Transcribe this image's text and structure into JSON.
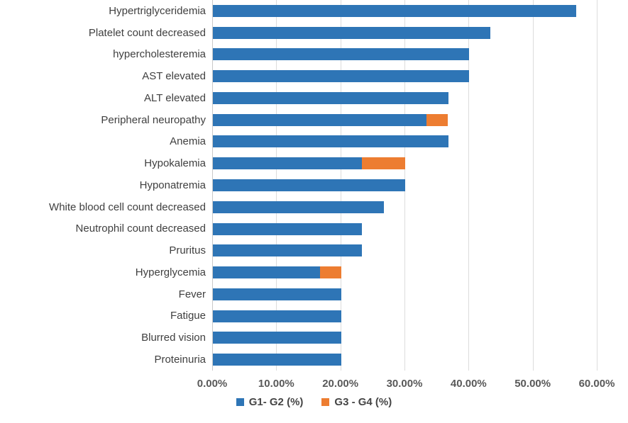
{
  "chart_data": {
    "type": "bar",
    "orientation": "horizontal",
    "stacked": true,
    "title": "",
    "xlabel": "",
    "ylabel": "",
    "grid": "vertical",
    "legend_position": "bottom",
    "xlim": [
      0,
      60
    ],
    "x_tick_labels": [
      "0.00%",
      "10.00%",
      "20.00%",
      "30.00%",
      "40.00%",
      "50.00%",
      "60.00%"
    ],
    "x_tick_values": [
      0,
      10,
      20,
      30,
      40,
      50,
      60
    ],
    "categories": [
      "Hypertriglyceridemia",
      "Platelet count decreased",
      "hypercholesteremia",
      "AST elevated",
      "ALT elevated",
      "Peripheral neuropathy",
      "Anemia",
      "Hypokalemia",
      "Hyponatremia",
      "White blood cell count decreased",
      "Neutrophil count decreased",
      "Pruritus",
      "Hyperglycemia",
      "Fever",
      "Fatigue",
      "Blurred vision",
      "Proteinuria"
    ],
    "series": [
      {
        "name": "G1- G2 (%)",
        "color": "#2E75B6",
        "values": [
          56.7,
          43.3,
          40.0,
          40.0,
          36.7,
          33.3,
          36.7,
          23.3,
          30.0,
          26.7,
          23.3,
          23.3,
          16.7,
          20.0,
          20.0,
          20.0,
          20.0
        ]
      },
      {
        "name": "G3 - G4 (%)",
        "color": "#ED7D31",
        "values": [
          0,
          0,
          0,
          0,
          0,
          3.3,
          0,
          6.7,
          0,
          0,
          0,
          0,
          3.3,
          0,
          0,
          0,
          0
        ]
      }
    ],
    "colors": {
      "gridline": "#DCDCDC",
      "axis_line": "#C9C9C9",
      "tick_text": "#595959",
      "category_text": "#3F3F3F",
      "legend_text": "#454545",
      "background": "#FFFFFF"
    }
  }
}
